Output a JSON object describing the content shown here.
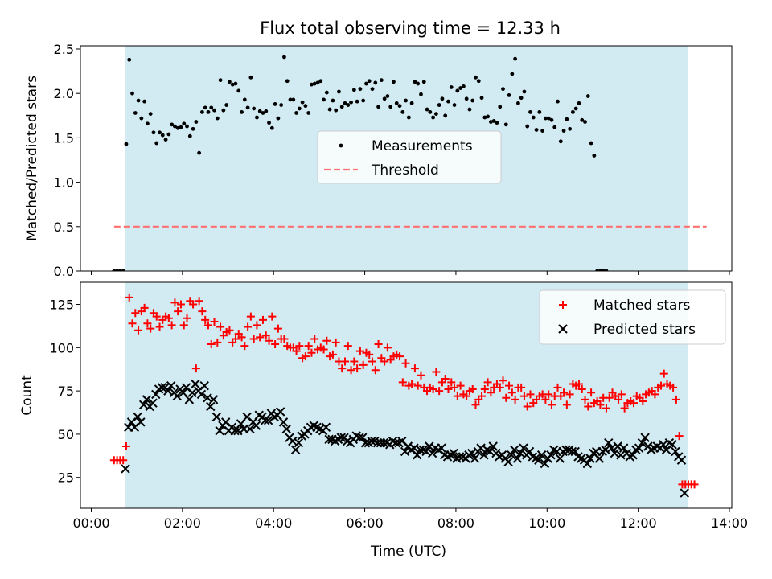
{
  "figure": {
    "title": "Flux total observing time = 12.33 h"
  },
  "chart_data": [
    {
      "type": "scatter",
      "ylabel": "Matched/Predicted stars",
      "xlim": [
        "00:00",
        "14:00"
      ],
      "ylim": [
        0,
        2.5
      ],
      "y_ticks": [
        "0.0",
        "0.5",
        "1.0",
        "1.5",
        "2.0",
        "2.5"
      ],
      "shaded_span": {
        "x": [
          "00:45",
          "13:05"
        ],
        "color": "#add8e6"
      },
      "threshold": {
        "value": 0.5,
        "x": [
          "00:30",
          "13:30"
        ],
        "color": "#ff7070"
      },
      "legend": [
        "Measurements",
        "Threshold"
      ],
      "legend_loc": "center",
      "series": [
        {
          "name": "Measurements",
          "marker": "dot",
          "color": "#000000",
          "x_start": "00:30",
          "x_step_min": 4,
          "values": [
            0,
            0,
            0,
            0,
            1.43,
            2.38,
            2.0,
            1.78,
            1.92,
            1.72,
            1.91,
            1.66,
            1.77,
            1.56,
            1.44,
            1.56,
            1.53,
            1.48,
            1.54,
            1.65,
            1.63,
            1.61,
            1.62,
            1.66,
            1.63,
            1.52,
            1.6,
            1.68,
            1.33,
            1.79,
            1.84,
            1.79,
            1.84,
            1.81,
            1.72,
            2.15,
            1.81,
            1.87,
            2.13,
            2.1,
            2.11,
            2.03,
            1.79,
            1.93,
            1.84,
            2.18,
            1.83,
            1.73,
            1.8,
            1.78,
            1.8,
            1.67,
            1.61,
            1.88,
            1.72,
            1.87,
            2.41,
            2.14,
            1.93,
            1.93,
            1.78,
            1.83,
            1.9,
            1.86,
            1.78,
            2.1,
            2.11,
            2.12,
            2.14,
            1.93,
            2.01,
            1.82,
            1.92,
            1.81,
            2.02,
            1.85,
            1.89,
            1.87,
            1.9,
            2.04,
            1.91,
            2.05,
            1.92,
            2.11,
            2.14,
            2.05,
            2.12,
            1.85,
            2.15,
            1.94,
            1.97,
            1.85,
            2.13,
            1.89,
            1.86,
            1.79,
            1.92,
            1.73,
            1.89,
            2.13,
            2.11,
            1.99,
            2.13,
            1.82,
            1.79,
            1.73,
            1.77,
            1.87,
            1.94,
            1.75,
            1.91,
            2.07,
            1.87,
            2.03,
            2.06,
            2.08,
            1.94,
            1.82,
            1.92,
            2.18,
            2.14,
            1.95,
            1.73,
            1.74,
            1.68,
            1.69,
            1.67,
            1.85,
            2.05,
            1.65,
            1.98,
            2.22,
            2.39,
            1.89,
            1.95,
            2.02,
            1.63,
            1.79,
            1.73,
            1.59,
            1.79,
            1.58,
            1.72,
            1.72,
            1.7,
            1.62,
            1.91,
            1.46,
            1.58,
            1.71,
            1.6,
            1.79,
            1.83,
            1.89,
            1.7,
            1.68,
            1.97,
            1.44,
            1.3,
            0,
            0,
            0,
            0
          ]
        }
      ]
    },
    {
      "type": "scatter",
      "xlabel": "Time (UTC)",
      "ylabel": "Count",
      "xlim": [
        "00:00",
        "14:00"
      ],
      "ylim": [
        10,
        135
      ],
      "x_ticks": [
        "00:00",
        "02:00",
        "04:00",
        "06:00",
        "08:00",
        "10:00",
        "12:00",
        "14:00"
      ],
      "y_ticks": [
        "25",
        "50",
        "75",
        "100",
        "125"
      ],
      "shaded_span": {
        "x": [
          "00:45",
          "13:05"
        ],
        "color": "#add8e6"
      },
      "legend": [
        "Matched stars",
        "Predicted stars"
      ],
      "legend_loc": "upper right",
      "series": [
        {
          "name": "Matched stars",
          "marker": "+",
          "color": "#ff0000",
          "x_start": "00:30",
          "x_step_min": 4,
          "values": [
            35,
            35,
            35,
            35,
            43,
            129,
            114,
            120,
            110,
            121,
            123,
            114,
            111,
            120,
            118,
            112,
            116,
            118,
            117,
            113,
            126,
            121,
            125,
            113,
            117,
            127,
            125,
            88,
            127,
            121,
            116,
            113,
            102,
            115,
            103,
            112,
            107,
            109,
            110,
            103,
            105,
            108,
            106,
            101,
            112,
            118,
            105,
            113,
            106,
            116,
            107,
            104,
            118,
            102,
            111,
            105,
            105,
            101,
            100,
            100,
            98,
            101,
            94,
            95,
            101,
            97,
            105,
            99,
            100,
            99,
            104,
            95,
            96,
            103,
            92,
            88,
            92,
            101,
            87,
            92,
            88,
            98,
            90,
            97,
            96,
            92,
            87,
            102,
            94,
            92,
            100,
            93,
            95,
            96,
            95,
            80,
            91,
            78,
            79,
            88,
            78,
            84,
            77,
            75,
            77,
            76,
            86,
            75,
            80,
            82,
            76,
            80,
            77,
            72,
            78,
            73,
            72,
            75,
            76,
            67,
            70,
            72,
            76,
            80,
            74,
            77,
            79,
            77,
            81,
            71,
            78,
            74,
            70,
            77,
            77,
            72,
            66,
            73,
            68,
            70,
            72,
            73,
            70,
            73,
            67,
            72,
            77,
            72,
            74,
            67,
            73,
            79,
            78,
            79,
            76,
            70,
            66,
            74,
            68,
            69,
            67,
            71,
            65,
            71,
            74,
            72,
            70,
            73,
            65,
            68,
            69,
            68,
            72,
            71,
            69,
            73,
            74,
            75,
            73,
            77,
            78,
            85,
            79,
            78,
            77,
            70,
            49,
            21,
            21,
            21,
            21,
            21
          ]
        },
        {
          "name": "Predicted stars",
          "marker": "x",
          "color": "#000000",
          "x_start": "00:45",
          "x_step_min": 4,
          "values": [
            30,
            54,
            57,
            54,
            60,
            57,
            67,
            70,
            66,
            68,
            73,
            76,
            77,
            77,
            75,
            78,
            74,
            72,
            76,
            74,
            77,
            70,
            74,
            79,
            75,
            73,
            78,
            71,
            66,
            70,
            60,
            52,
            55,
            57,
            52,
            54,
            52,
            52,
            56,
            53,
            60,
            53,
            57,
            55,
            61,
            60,
            58,
            58,
            62,
            60,
            61,
            63,
            57,
            53,
            48,
            46,
            41,
            45,
            49,
            50,
            52,
            54,
            55,
            54,
            53,
            52,
            54,
            47,
            47,
            46,
            47,
            48,
            48,
            46,
            45,
            47,
            49,
            48,
            48,
            45,
            45,
            46,
            46,
            45,
            45,
            45,
            45,
            44,
            46,
            45,
            45,
            46,
            40,
            43,
            41,
            42,
            38,
            41,
            41,
            40,
            43,
            39,
            42,
            41,
            42,
            38,
            37,
            38,
            39,
            36,
            37,
            37,
            36,
            38,
            39,
            36,
            40,
            42,
            38,
            41,
            40,
            43,
            39,
            37,
            38,
            36,
            34,
            38,
            41,
            36,
            39,
            42,
            38,
            40,
            37,
            36,
            35,
            38,
            33,
            36,
            38,
            41,
            40,
            36,
            40,
            41,
            41,
            40,
            40,
            37,
            36,
            35,
            33,
            36,
            39,
            40,
            36,
            40,
            41,
            45,
            42,
            39,
            43,
            38,
            42,
            39,
            37,
            38,
            41,
            42,
            45,
            48,
            43,
            41,
            42,
            43,
            42,
            44,
            41,
            45,
            44,
            40,
            37,
            35,
            16
          ]
        }
      ]
    }
  ]
}
